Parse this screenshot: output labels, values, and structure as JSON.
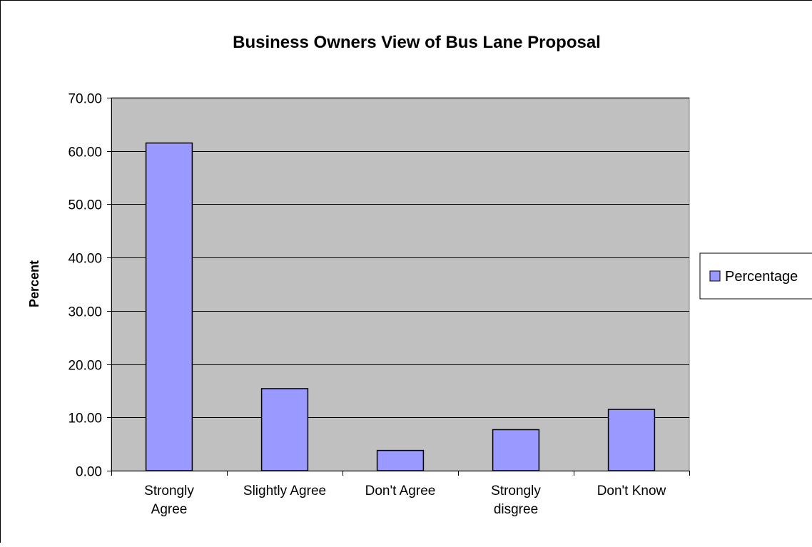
{
  "chart_data": {
    "type": "bar",
    "title": "Business Owners View of Bus Lane Proposal",
    "xlabel": "",
    "ylabel": "Percent",
    "ylim": [
      0,
      70
    ],
    "yticks": [
      "0.00",
      "10.00",
      "20.00",
      "30.00",
      "40.00",
      "50.00",
      "60.00",
      "70.00"
    ],
    "grid": true,
    "legend_position": "right",
    "categories": [
      [
        "Strongly",
        "Agree"
      ],
      [
        "Slightly Agree"
      ],
      [
        "Don't Agree"
      ],
      [
        "Strongly",
        "disgree"
      ],
      [
        "Don't Know"
      ]
    ],
    "series": [
      {
        "name": "Percentage",
        "color": "#9999ff",
        "values": [
          61.5,
          15.4,
          3.8,
          7.7,
          11.5
        ]
      }
    ],
    "plot_background": "#c0c0c0",
    "border_color": "#000000"
  }
}
